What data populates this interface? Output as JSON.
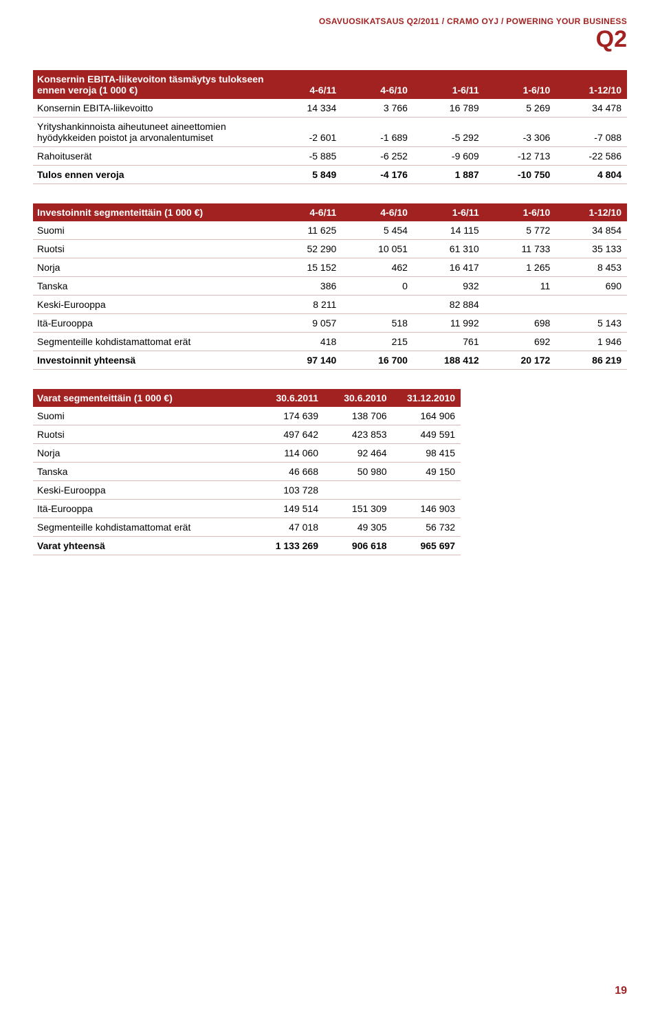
{
  "colors": {
    "brand": "#a22222",
    "row_border": "#d9b9b9",
    "header_bg": "#a22222",
    "header_text": "#ffffff"
  },
  "header": {
    "tagline": "OSAVUOSIKATSAUS Q2/2011 / CRAMO OYJ / POWERING YOUR BUSINESS",
    "quarter": "Q2"
  },
  "page_number": "19",
  "table1": {
    "columns": [
      "Konsernin EBITA-liikevoiton täsmäytys tulokseen ennen veroja (1 000 €)",
      "4-6/11",
      "4-6/10",
      "1-6/11",
      "1-6/10",
      "1-12/10"
    ],
    "rows": [
      {
        "label": "Konsernin EBITA-liikevoitto",
        "v": [
          "14 334",
          "3 766",
          "16 789",
          "5 269",
          "34 478"
        ]
      },
      {
        "label": "Yrityshankinnoista aiheutuneet aineettomien hyödykkeiden poistot ja arvonalentumiset",
        "v": [
          "-2 601",
          "-1 689",
          "-5 292",
          "-3 306",
          "-7 088"
        ]
      },
      {
        "label": "Rahoituserät",
        "v": [
          "-5 885",
          "-6 252",
          "-9 609",
          "-12 713",
          "-22 586"
        ]
      },
      {
        "label": "Tulos ennen veroja",
        "v": [
          "5 849",
          "-4 176",
          "1 887",
          "-10 750",
          "4 804"
        ],
        "bold": true
      }
    ]
  },
  "table2": {
    "columns": [
      "Investoinnit segmenteittäin (1 000 €)",
      "4-6/11",
      "4-6/10",
      "1-6/11",
      "1-6/10",
      "1-12/10"
    ],
    "rows": [
      {
        "label": "Suomi",
        "v": [
          "11 625",
          "5 454",
          "14 115",
          "5 772",
          "34 854"
        ]
      },
      {
        "label": "Ruotsi",
        "v": [
          "52 290",
          "10 051",
          "61 310",
          "11 733",
          "35 133"
        ]
      },
      {
        "label": "Norja",
        "v": [
          "15 152",
          "462",
          "16 417",
          "1 265",
          "8 453"
        ]
      },
      {
        "label": "Tanska",
        "v": [
          "386",
          "0",
          "932",
          "11",
          "690"
        ]
      },
      {
        "label": "Keski-Eurooppa",
        "v": [
          "8 211",
          "",
          "82 884",
          "",
          ""
        ]
      },
      {
        "label": "Itä-Eurooppa",
        "v": [
          "9 057",
          "518",
          "11 992",
          "698",
          "5 143"
        ]
      },
      {
        "label": "Segmenteille kohdistamattomat erät",
        "v": [
          "418",
          "215",
          "761",
          "692",
          "1 946"
        ]
      },
      {
        "label": "Investoinnit yhteensä",
        "v": [
          "97 140",
          "16 700",
          "188 412",
          "20 172",
          "86 219"
        ],
        "bold": true
      }
    ]
  },
  "table3": {
    "columns": [
      "Varat segmenteittäin (1 000 €)",
      "30.6.2011",
      "30.6.2010",
      "31.12.2010"
    ],
    "rows": [
      {
        "label": "Suomi",
        "v": [
          "174 639",
          "138 706",
          "164 906"
        ]
      },
      {
        "label": "Ruotsi",
        "v": [
          "497 642",
          "423 853",
          "449 591"
        ]
      },
      {
        "label": "Norja",
        "v": [
          "114 060",
          "92 464",
          "98 415"
        ]
      },
      {
        "label": "Tanska",
        "v": [
          "46 668",
          "50 980",
          "49 150"
        ]
      },
      {
        "label": "Keski-Eurooppa",
        "v": [
          "103 728",
          "",
          ""
        ]
      },
      {
        "label": "Itä-Eurooppa",
        "v": [
          "149 514",
          "151 309",
          "146 903"
        ]
      },
      {
        "label": "Segmenteille kohdistamattomat erät",
        "v": [
          "47 018",
          "49 305",
          "56 732"
        ]
      },
      {
        "label": "Varat yhteensä",
        "v": [
          "1 133 269",
          "906 618",
          "965 697"
        ],
        "bold": true
      }
    ]
  }
}
